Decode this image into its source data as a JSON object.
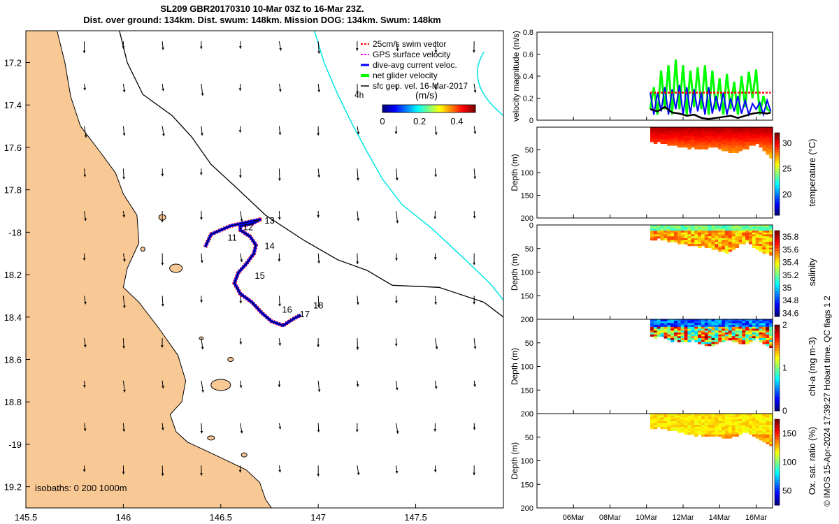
{
  "header": {
    "title_line1": "SL209 GBR20170310 10-Mar 03Z to 16-Mar 23Z.",
    "title_line2": "Dist. over ground: 134km. Dist. swum: 148km. Mission DOG: 134km. Swum: 148km"
  },
  "footer_text": "© IMOS 15-Apr-2024 17:39:27 Hobart time. QC flags 1  2",
  "colors": {
    "land": "#f9c995",
    "track_red": "#ff0000",
    "track_blue": "#0000ff",
    "cyan_isobath": "#00e5e5",
    "green_glider": "#00ff00",
    "black": "#000000"
  },
  "chart_data": [
    {
      "id": "map",
      "type": "map",
      "xlim": [
        145.5,
        147.95
      ],
      "ylim": [
        -19.3,
        -17.05
      ],
      "xticks": [
        145.5,
        146,
        146.5,
        147,
        147.5
      ],
      "yticks": [
        -17.2,
        -17.4,
        -17.6,
        -17.8,
        -18,
        -18.2,
        -18.4,
        -18.6,
        -18.8,
        -19,
        -19.2
      ],
      "xtick_labels": [
        "145.5",
        "146",
        "146.5",
        "147",
        "147.5"
      ],
      "ytick_labels": [
        "17.2",
        "17.4",
        "17.6",
        "17.8",
        "-18",
        "18.2",
        "18.4",
        "18.6",
        "18.8",
        "-19",
        "19.2"
      ],
      "isobath_label": "isobaths: 0   200  1000m",
      "legend": [
        "25cm/s swim vector",
        "GPS surface velocity",
        "dive-avg current veloc.",
        "net glider velocity",
        "sfc geo. vel. 16-Mar-2017"
      ],
      "scale_label": "4h",
      "colorbar": {
        "label": "(m/s)",
        "ticks": [
          "0",
          "0.2",
          "0.4"
        ],
        "range": [
          0,
          0.5
        ]
      },
      "track": [
        [
          146.42,
          -18.07
        ],
        [
          146.45,
          -18.01
        ],
        [
          146.5,
          -17.99
        ],
        [
          146.55,
          -17.97
        ],
        [
          146.6,
          -17.96
        ],
        [
          146.65,
          -17.95
        ],
        [
          146.7,
          -17.94
        ],
        [
          146.66,
          -17.96
        ],
        [
          146.6,
          -17.97
        ],
        [
          146.6,
          -17.99
        ],
        [
          146.65,
          -18.02
        ],
        [
          146.68,
          -18.06
        ],
        [
          146.67,
          -18.1
        ],
        [
          146.63,
          -18.15
        ],
        [
          146.59,
          -18.19
        ],
        [
          146.57,
          -18.24
        ],
        [
          146.6,
          -18.29
        ],
        [
          146.66,
          -18.33
        ],
        [
          146.71,
          -18.38
        ],
        [
          146.76,
          -18.42
        ],
        [
          146.82,
          -18.44
        ],
        [
          146.87,
          -18.41
        ],
        [
          146.91,
          -18.39
        ]
      ],
      "track_labels": [
        {
          "text": "11",
          "lon": 146.52,
          "lat": -18.04
        },
        {
          "text": "12",
          "lon": 146.6,
          "lat": -17.99
        },
        {
          "text": "13",
          "lon": 146.71,
          "lat": -17.96
        },
        {
          "text": "14",
          "lon": 146.71,
          "lat": -18.08
        },
        {
          "text": "15",
          "lon": 146.66,
          "lat": -18.22
        },
        {
          "text": "16",
          "lon": 146.8,
          "lat": -18.38
        },
        {
          "text": "17",
          "lon": 146.89,
          "lat": -18.4
        },
        {
          "text": "18",
          "lon": 146.96,
          "lat": -18.36
        }
      ],
      "coast": [
        [
          145.5,
          -17.05
        ],
        [
          145.66,
          -17.05
        ],
        [
          145.7,
          -17.2
        ],
        [
          145.73,
          -17.36
        ],
        [
          145.78,
          -17.5
        ],
        [
          145.88,
          -17.62
        ],
        [
          145.96,
          -17.72
        ],
        [
          146.0,
          -17.82
        ],
        [
          146.07,
          -17.92
        ],
        [
          146.08,
          -18.05
        ],
        [
          146.02,
          -18.17
        ],
        [
          146.0,
          -18.26
        ],
        [
          146.08,
          -18.33
        ],
        [
          146.18,
          -18.45
        ],
        [
          146.28,
          -18.58
        ],
        [
          146.32,
          -18.7
        ],
        [
          146.3,
          -18.8
        ],
        [
          146.24,
          -18.86
        ],
        [
          146.27,
          -18.94
        ],
        [
          146.33,
          -18.99
        ],
        [
          146.47,
          -19.05
        ],
        [
          146.63,
          -19.12
        ],
        [
          146.7,
          -19.18
        ],
        [
          146.73,
          -19.26
        ],
        [
          146.76,
          -19.3
        ],
        [
          145.5,
          -19.3
        ]
      ],
      "isobath_200": [
        [
          146.98,
          -17.05
        ],
        [
          147.03,
          -17.2
        ],
        [
          147.1,
          -17.35
        ],
        [
          147.18,
          -17.5
        ],
        [
          147.25,
          -17.62
        ],
        [
          147.33,
          -17.75
        ],
        [
          147.43,
          -17.87
        ],
        [
          147.58,
          -17.98
        ],
        [
          147.72,
          -18.1
        ],
        [
          147.88,
          -18.24
        ],
        [
          147.95,
          -18.32
        ]
      ],
      "isobath_1000": [
        [
          145.98,
          -17.05
        ],
        [
          146.02,
          -17.2
        ],
        [
          146.1,
          -17.35
        ],
        [
          146.25,
          -17.45
        ],
        [
          146.35,
          -17.55
        ],
        [
          146.45,
          -17.68
        ],
        [
          146.58,
          -17.79
        ],
        [
          146.73,
          -17.92
        ],
        [
          146.93,
          -18.04
        ],
        [
          147.1,
          -18.13
        ],
        [
          147.25,
          -18.18
        ],
        [
          147.38,
          -18.25
        ],
        [
          147.62,
          -18.26
        ],
        [
          147.85,
          -18.33
        ],
        [
          147.95,
          -18.4
        ]
      ],
      "eddy": [
        [
          147.8,
          -17.15
        ],
        [
          147.88,
          -17.12
        ],
        [
          147.95,
          -17.12
        ]
      ],
      "eddy2": [
        [
          147.8,
          -17.45
        ],
        [
          147.88,
          -17.5
        ],
        [
          147.95,
          -17.48
        ]
      ]
    },
    {
      "id": "velocity",
      "type": "line",
      "ylabel": "velocity magnitude (m/s)",
      "ylim": [
        0,
        0.8
      ],
      "yticks": [
        0,
        0.2,
        0.4,
        0.6,
        0.8
      ],
      "ytick_labels": [
        "0",
        "0.2",
        "0.4",
        "0.6",
        "0.8"
      ],
      "xlim": [
        4.0,
        16.9
      ],
      "series": [
        {
          "name": "net glider velocity",
          "color": "#00ff00",
          "x": [
            10.2,
            10.4,
            10.6,
            10.8,
            11.0,
            11.2,
            11.4,
            11.6,
            11.8,
            12.0,
            12.2,
            12.4,
            12.6,
            12.8,
            13.0,
            13.2,
            13.4,
            13.6,
            13.8,
            14.0,
            14.2,
            14.4,
            14.6,
            14.8,
            15.0,
            15.2,
            15.4,
            15.6,
            15.8,
            16.0,
            16.2,
            16.4,
            16.6,
            16.8
          ],
          "values": [
            0.1,
            0.3,
            0.05,
            0.45,
            0.1,
            0.5,
            0.05,
            0.55,
            0.1,
            0.5,
            0.05,
            0.45,
            0.12,
            0.48,
            0.1,
            0.5,
            0.05,
            0.45,
            0.1,
            0.38,
            0.05,
            0.42,
            0.1,
            0.35,
            0.05,
            0.4,
            0.12,
            0.44,
            0.2,
            0.46,
            0.05,
            0.22,
            0.1,
            0.08
          ]
        },
        {
          "name": "dive-avg current veloc.",
          "color": "#0000ff",
          "x": [
            10.2,
            10.4,
            10.6,
            10.8,
            11.0,
            11.2,
            11.4,
            11.6,
            11.8,
            12.0,
            12.2,
            12.4,
            12.6,
            12.8,
            13.0,
            13.2,
            13.4,
            13.6,
            13.8,
            14.0,
            14.2,
            14.4,
            14.6,
            14.8,
            15.0,
            15.2,
            15.4,
            15.6,
            15.8,
            16.0,
            16.2,
            16.4,
            16.6,
            16.8
          ],
          "values": [
            0.25,
            0.05,
            0.25,
            0.08,
            0.3,
            0.05,
            0.28,
            0.1,
            0.32,
            0.05,
            0.3,
            0.06,
            0.28,
            0.08,
            0.25,
            0.05,
            0.3,
            0.06,
            0.22,
            0.08,
            0.25,
            0.05,
            0.2,
            0.08,
            0.22,
            0.06,
            0.18,
            0.05,
            0.15,
            0.1,
            0.16,
            0.05,
            0.18,
            0.08
          ]
        },
        {
          "name": "swim vector",
          "color": "#ff0000",
          "x": [
            10.2,
            16.8
          ],
          "values": [
            0.25,
            0.25
          ]
        },
        {
          "name": "sfc geo. vel.",
          "color": "#000000",
          "x": [
            10.2,
            10.6,
            11.0,
            11.4,
            11.8,
            12.2,
            12.6,
            13.0,
            13.4,
            13.8,
            14.2,
            14.6,
            15.0,
            15.4,
            15.8,
            16.2,
            16.6,
            16.8
          ],
          "values": [
            0.1,
            0.08,
            0.12,
            0.07,
            0.06,
            0.04,
            0.05,
            0.02,
            0.01,
            0.02,
            0.03,
            0.04,
            0.02,
            0.04,
            0.06,
            0.07,
            0.06,
            0.07
          ]
        }
      ]
    },
    {
      "id": "temperature",
      "type": "heatmap",
      "ylabel": "Depth (m)",
      "cbar_label": "temperature (°C)",
      "cbar_ticks": [
        "20",
        "25",
        "30"
      ],
      "cbar_range": [
        16,
        32
      ],
      "yticks": [
        "50",
        "100",
        "150",
        "200"
      ],
      "depth_profile": [
        32,
        34,
        30,
        35,
        36,
        38,
        37,
        40,
        42,
        41,
        43,
        45,
        44,
        46,
        48,
        47,
        45,
        43,
        42,
        44,
        46,
        50,
        52,
        54,
        55,
        53,
        50,
        48,
        45,
        40,
        38,
        36,
        42,
        50,
        58,
        65
      ],
      "value_range": [
        27,
        31
      ]
    },
    {
      "id": "salinity",
      "type": "heatmap",
      "ylabel": "Depth (m)",
      "cbar_label": "salinity",
      "cbar_ticks": [
        "34.6",
        "34.8",
        "35",
        "35.2",
        "35.4",
        "35.6",
        "35.8"
      ],
      "cbar_range": [
        34.55,
        35.9
      ],
      "yticks": [
        "0",
        "50",
        "100",
        "150",
        "200"
      ],
      "depth_profile": [
        30,
        32,
        28,
        30,
        32,
        34,
        33,
        36,
        38,
        37,
        40,
        42,
        41,
        43,
        45,
        44,
        46,
        48,
        50,
        52,
        54,
        56,
        58,
        55,
        50,
        45,
        40,
        38,
        36,
        40,
        45,
        50,
        55,
        58,
        60,
        62
      ],
      "value_range": [
        35.3,
        35.85
      ]
    },
    {
      "id": "chla",
      "type": "heatmap",
      "ylabel": "Depth (m)",
      "cbar_label": "chl-a (mg m-3)",
      "cbar_ticks": [
        "0",
        "1",
        "2"
      ],
      "cbar_range": [
        0,
        2
      ],
      "yticks": [
        "0",
        "50",
        "100",
        "150",
        "200"
      ],
      "depth_profile": [
        35,
        38,
        34,
        36,
        40,
        42,
        45,
        44,
        46,
        48,
        47,
        45,
        44,
        46,
        50,
        52,
        54,
        55,
        53,
        50,
        48,
        46,
        44,
        42,
        45,
        48,
        50,
        52,
        50,
        46,
        42,
        40,
        45,
        50,
        55,
        60
      ],
      "value_range": [
        0.2,
        2.0
      ]
    },
    {
      "id": "oxygen",
      "type": "heatmap",
      "ylabel": "Depth (m)",
      "cbar_label": "Ox. sat. ratio (%)",
      "cbar_ticks": [
        "50",
        "100",
        "150"
      ],
      "cbar_range": [
        25,
        175
      ],
      "yticks": [
        "0",
        "50",
        "100",
        "150",
        "200"
      ],
      "depth_profile": [
        30,
        32,
        28,
        30,
        32,
        34,
        35,
        36,
        38,
        40,
        42,
        41,
        43,
        45,
        44,
        46,
        48,
        47,
        45,
        46,
        48,
        50,
        52,
        50,
        48,
        45,
        42,
        40,
        38,
        42,
        46,
        50,
        55,
        60,
        62,
        65
      ],
      "value_range": [
        108,
        135
      ],
      "xlabels": [
        "06Mar",
        "08Mar",
        "10Mar",
        "12Mar",
        "14Mar",
        "16Mar"
      ],
      "xlabel_days": [
        6,
        8,
        10,
        12,
        14,
        16
      ]
    }
  ]
}
